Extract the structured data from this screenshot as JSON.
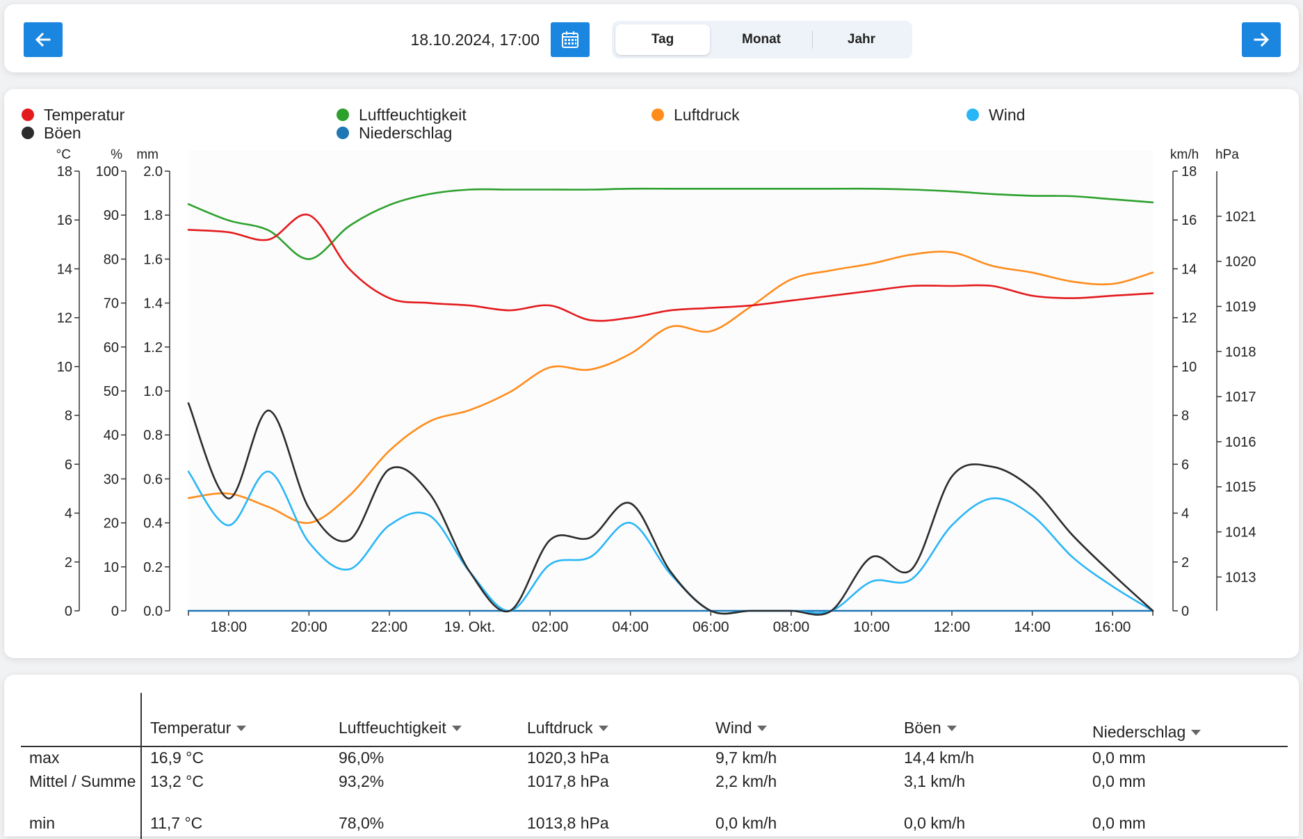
{
  "toolbar": {
    "datetime": "18.10.2024, 17:00",
    "ranges": [
      "Tag",
      "Monat",
      "Jahr"
    ],
    "active_range": "Tag",
    "prev_icon": "arrow-left-icon",
    "next_icon": "arrow-right-icon",
    "calendar_icon": "calendar-icon",
    "accent_color": "#1a86e0"
  },
  "legend": [
    {
      "name": "Temperatur",
      "color": "#e31a1c"
    },
    {
      "name": "Luftfeuchtigkeit",
      "color": "#2ca02c"
    },
    {
      "name": "Luftdruck",
      "color": "#ff8c1a"
    },
    {
      "name": "Wind",
      "color": "#29b6f6"
    },
    {
      "name": "Böen",
      "color": "#2b2b2b"
    },
    {
      "name": "Niederschlag",
      "color": "#1f77b4"
    }
  ],
  "chart_data": {
    "type": "line",
    "x_tick_labels": [
      "18:00",
      "20:00",
      "22:00",
      "19. Okt.",
      "02:00",
      "04:00",
      "06:00",
      "08:00",
      "10:00",
      "12:00",
      "14:00",
      "16:00"
    ],
    "x_range_hours": [
      -1,
      23
    ],
    "axes": {
      "temp": {
        "unit": "°C",
        "range": [
          0,
          18
        ],
        "ticks": [
          0,
          2,
          4,
          6,
          8,
          10,
          12,
          14,
          16,
          18
        ]
      },
      "humidity": {
        "unit": "%",
        "range": [
          0,
          100
        ],
        "ticks": [
          0,
          10,
          20,
          30,
          40,
          50,
          60,
          70,
          80,
          90,
          100
        ]
      },
      "precip": {
        "unit": "mm",
        "range": [
          0,
          2
        ],
        "ticks": [
          "0.0",
          "0.2",
          "0.4",
          "0.6",
          "0.8",
          "1.0",
          "1.2",
          "1.4",
          "1.6",
          "1.8",
          "2.0"
        ]
      },
      "wind": {
        "unit": "km/h",
        "range": [
          0,
          18
        ],
        "ticks": [
          0,
          2,
          4,
          6,
          8,
          10,
          12,
          14,
          16,
          18
        ]
      },
      "pressure": {
        "unit": "hPa",
        "range": [
          1012.25,
          1022
        ],
        "ticks": [
          1013,
          1014,
          1015,
          1016,
          1017,
          1018,
          1019,
          1020,
          1021
        ]
      }
    },
    "x_hours": [
      -1,
      0,
      1,
      2,
      3,
      4,
      5,
      6,
      7,
      8,
      9,
      10,
      11,
      12,
      13,
      14,
      15,
      16,
      17,
      18,
      19,
      20,
      21,
      22,
      23
    ],
    "series": [
      {
        "name": "Temperatur",
        "axis": "temp",
        "color": "#e31a1c",
        "values": [
          15.6,
          15.5,
          15.2,
          16.2,
          14.0,
          12.8,
          12.6,
          12.5,
          12.3,
          12.5,
          11.9,
          12.0,
          12.3,
          12.4,
          12.5,
          12.7,
          12.9,
          13.1,
          13.3,
          13.3,
          13.3,
          12.9,
          12.8,
          12.9,
          13.0
        ]
      },
      {
        "name": "Luftfeuchtigkeit",
        "axis": "humidity",
        "color": "#2ca02c",
        "values": [
          92.5,
          88.8,
          86.5,
          80.0,
          87.5,
          92.3,
          94.8,
          95.8,
          95.8,
          95.8,
          95.8,
          96.0,
          96.0,
          96.0,
          96.0,
          96.0,
          96.0,
          96.0,
          95.8,
          95.4,
          94.8,
          94.4,
          94.3,
          93.6,
          92.9
        ]
      },
      {
        "name": "Luftdruck",
        "axis": "pressure",
        "color": "#ff8c1a",
        "values": [
          1014.75,
          1014.85,
          1014.55,
          1014.2,
          1014.8,
          1015.8,
          1016.45,
          1016.7,
          1017.1,
          1017.65,
          1017.6,
          1017.95,
          1018.55,
          1018.45,
          1019.0,
          1019.6,
          1019.8,
          1019.95,
          1020.15,
          1020.2,
          1019.9,
          1019.75,
          1019.55,
          1019.5,
          1019.75
        ]
      },
      {
        "name": "Wind",
        "axis": "wind",
        "color": "#29b6f6",
        "values": [
          5.7,
          3.5,
          5.7,
          2.8,
          1.7,
          3.5,
          3.9,
          1.6,
          0.0,
          1.9,
          2.2,
          3.6,
          1.5,
          0.0,
          0.0,
          0.0,
          0.0,
          1.2,
          1.3,
          3.5,
          4.6,
          3.9,
          2.2,
          1.0,
          0.0
        ]
      },
      {
        "name": "Böen",
        "axis": "wind",
        "color": "#2b2b2b",
        "values": [
          8.5,
          4.6,
          8.2,
          4.2,
          2.9,
          5.8,
          4.8,
          1.6,
          0.0,
          2.9,
          3.0,
          4.4,
          1.6,
          0.0,
          0.0,
          0.0,
          0.0,
          2.2,
          1.7,
          5.5,
          5.9,
          5.0,
          3.1,
          1.5,
          0.0
        ]
      },
      {
        "name": "Niederschlag",
        "axis": "precip",
        "color": "#1f77b4",
        "values": [
          0,
          0,
          0,
          0,
          0,
          0,
          0,
          0,
          0,
          0,
          0,
          0,
          0,
          0,
          0,
          0,
          0,
          0,
          0,
          0,
          0,
          0,
          0,
          0,
          0
        ]
      }
    ],
    "grid": false,
    "legend_position": "top"
  },
  "table": {
    "headers": [
      "Temperatur",
      "Luftfeuchtigkeit",
      "Luftdruck",
      "Wind",
      "Böen",
      "Niederschlag"
    ],
    "rows": [
      {
        "label": "max",
        "values": [
          "16,9 °C",
          "96,0%",
          "1020,3 hPa",
          "9,7 km/h",
          "14,4 km/h",
          "0,0 mm"
        ]
      },
      {
        "label": "Mittel / Summe",
        "values": [
          "13,2 °C",
          "93,2%",
          "1017,8 hPa",
          "2,2 km/h",
          "3,1 km/h",
          "0,0 mm"
        ]
      },
      {
        "label": "min",
        "values": [
          "11,7 °C",
          "78,0%",
          "1013,8 hPa",
          "0,0 km/h",
          "0,0 km/h",
          "0,0 mm"
        ]
      }
    ]
  }
}
